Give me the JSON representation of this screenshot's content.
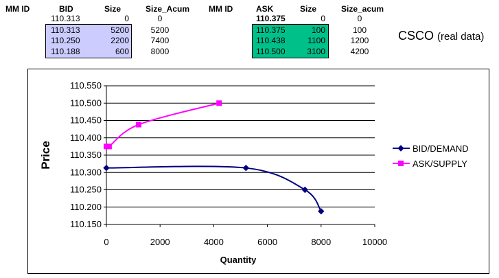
{
  "bid_table": {
    "headers": [
      "MM ID",
      "BID",
      "Size",
      "Size_Acum"
    ],
    "top_row": {
      "bid": "110.313",
      "size": "0",
      "acum": "0"
    },
    "rows": [
      {
        "bid": "110.313",
        "size": "5200",
        "acum": "5200"
      },
      {
        "bid": "110.250",
        "size": "2200",
        "acum": "7400"
      },
      {
        "bid": "110.188",
        "size": "600",
        "acum": "8000"
      }
    ]
  },
  "ask_table": {
    "headers": [
      "MM ID",
      "ASK",
      "Size",
      "Size_acum"
    ],
    "top_row": {
      "ask": "110.375",
      "size": "0",
      "acum": "0"
    },
    "rows": [
      {
        "ask": "110.375",
        "size": "100",
        "acum": "100"
      },
      {
        "ask": "110.438",
        "size": "1100",
        "acum": "1200"
      },
      {
        "ask": "110.500",
        "size": "3100",
        "acum": "4200"
      }
    ]
  },
  "label": {
    "main": "CSCO",
    "note": "(real data)"
  },
  "colors": {
    "bid_fill": "#ccccff",
    "ask_fill": "#00c08a",
    "bid_line": "#000080",
    "ask_line": "#ff00ff"
  },
  "chart_data": {
    "type": "line",
    "xlabel": "Quantity",
    "ylabel": "Price",
    "xlim": [
      0,
      10000
    ],
    "ylim": [
      110.15,
      110.55
    ],
    "x_ticks": [
      "0",
      "2000",
      "4000",
      "6000",
      "8000",
      "10000"
    ],
    "y_ticks": [
      "110.550",
      "110.500",
      "110.450",
      "110.400",
      "110.350",
      "110.300",
      "110.250",
      "110.200",
      "110.150"
    ],
    "grid": "horizontal",
    "legend_position": "right",
    "series": [
      {
        "name": "BID/DEMAND",
        "marker": "diamond",
        "color": "#000080",
        "points": [
          [
            0,
            110.313
          ],
          [
            5200,
            110.313
          ],
          [
            7400,
            110.25
          ],
          [
            8000,
            110.188
          ]
        ]
      },
      {
        "name": "ASK/SUPPLY",
        "marker": "square",
        "color": "#ff00ff",
        "points": [
          [
            0,
            110.375
          ],
          [
            100,
            110.375
          ],
          [
            1200,
            110.438
          ],
          [
            4200,
            110.5
          ]
        ]
      }
    ]
  }
}
